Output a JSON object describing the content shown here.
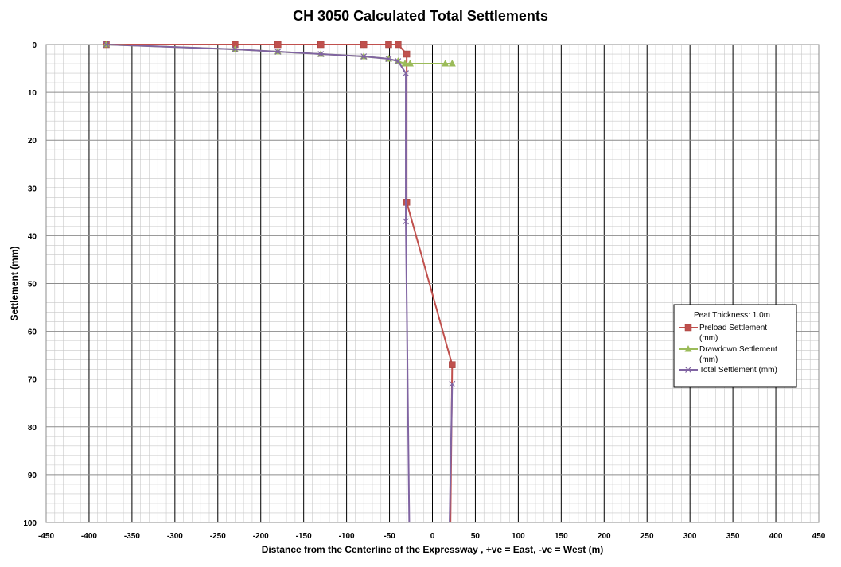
{
  "chart_data": {
    "type": "line",
    "title": "CH 3050 Calculated Total Settlements",
    "xlabel": "Distance from the Centerline of the Expressway , +ve = East, -ve = West (m)",
    "ylabel": "Settlement (mm)",
    "xlim": [
      -450,
      450
    ],
    "ylim": [
      0,
      100
    ],
    "y_inverted": true,
    "xticks": [
      -450,
      -400,
      -350,
      -300,
      -250,
      -200,
      -150,
      -100,
      -50,
      0,
      50,
      100,
      150,
      200,
      250,
      300,
      350,
      400,
      450
    ],
    "yticks": [
      0,
      10,
      20,
      30,
      40,
      50,
      60,
      70,
      80,
      90,
      100
    ],
    "legend": {
      "title": "Peat Thickness:  1.0m",
      "position": "right"
    },
    "series": [
      {
        "name": "Preload Settlement (mm)",
        "color": "#c0504d",
        "marker": "square",
        "points": [
          [
            -380,
            0
          ],
          [
            -230,
            0
          ],
          [
            -180,
            0
          ],
          [
            -130,
            0
          ],
          [
            -80,
            0
          ],
          [
            -51,
            0
          ],
          [
            -40,
            0
          ],
          [
            -30,
            2
          ],
          [
            -30,
            33
          ],
          [
            23,
            67
          ],
          [
            21,
            100
          ]
        ]
      },
      {
        "name": "Drawdown Settlement (mm)",
        "color": "#9bbb59",
        "marker": "triangle",
        "points": [
          [
            -380,
            0
          ],
          [
            -230,
            1
          ],
          [
            -180,
            1.5
          ],
          [
            -130,
            2
          ],
          [
            -80,
            2.5
          ],
          [
            -51,
            3
          ],
          [
            -40,
            3.5
          ],
          [
            -32,
            4
          ],
          [
            -26,
            4
          ],
          [
            15,
            4
          ],
          [
            23,
            4
          ]
        ]
      },
      {
        "name": "Total Settlement (mm)",
        "color": "#8064a2",
        "marker": "x",
        "points": [
          [
            -380,
            0
          ],
          [
            -230,
            1
          ],
          [
            -180,
            1.5
          ],
          [
            -130,
            2
          ],
          [
            -80,
            2.5
          ],
          [
            -51,
            3
          ],
          [
            -40,
            3.5
          ],
          [
            -31,
            6
          ],
          [
            -31,
            37
          ],
          [
            -27,
            100
          ]
        ]
      },
      {
        "name": "Total Settlement (mm) east",
        "color": "#8064a2",
        "marker": "x",
        "legend": false,
        "points": [
          [
            23,
            71
          ],
          [
            20,
            100
          ]
        ]
      }
    ]
  }
}
